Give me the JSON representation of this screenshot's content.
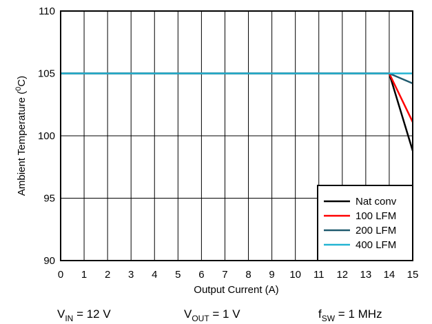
{
  "chart_data": {
    "type": "line",
    "xlabel": "Output Current (A)",
    "ylabel_main": "Ambient Temperature (",
    "ylabel_sup": "0",
    "ylabel_end": "C)",
    "xlim": [
      0,
      15
    ],
    "ylim": [
      90,
      110
    ],
    "xticks": [
      "0",
      "1",
      "2",
      "3",
      "4",
      "5",
      "6",
      "7",
      "8",
      "9",
      "10",
      "11",
      "12",
      "13",
      "14",
      "15"
    ],
    "yticks": [
      "90",
      "95",
      "100",
      "105",
      "110"
    ],
    "grid": true,
    "legend_position": "bottom-right",
    "series": [
      {
        "name": "Nat conv",
        "color": "#000000",
        "x": [
          0,
          14,
          15
        ],
        "y": [
          105,
          105,
          98.8
        ]
      },
      {
        "name": "100 LFM",
        "color": "#ff0000",
        "x": [
          0,
          14,
          15
        ],
        "y": [
          105,
          105,
          101.1
        ]
      },
      {
        "name": "200 LFM",
        "color": "#1f5a6e",
        "x": [
          0,
          14,
          15
        ],
        "y": [
          105,
          105,
          104.2
        ]
      },
      {
        "name": "400 LFM",
        "color": "#22b4d2",
        "x": [
          0,
          14,
          15
        ],
        "y": [
          105,
          105,
          105
        ]
      }
    ]
  },
  "footer": {
    "vin": {
      "base": "V",
      "sub": "IN",
      "rest": " = 12 V"
    },
    "vout": {
      "base": "V",
      "sub": "OUT",
      "rest": " = 1 V"
    },
    "fsw": {
      "base": "f",
      "sub": "SW",
      "rest": " = 1 MHz"
    }
  }
}
